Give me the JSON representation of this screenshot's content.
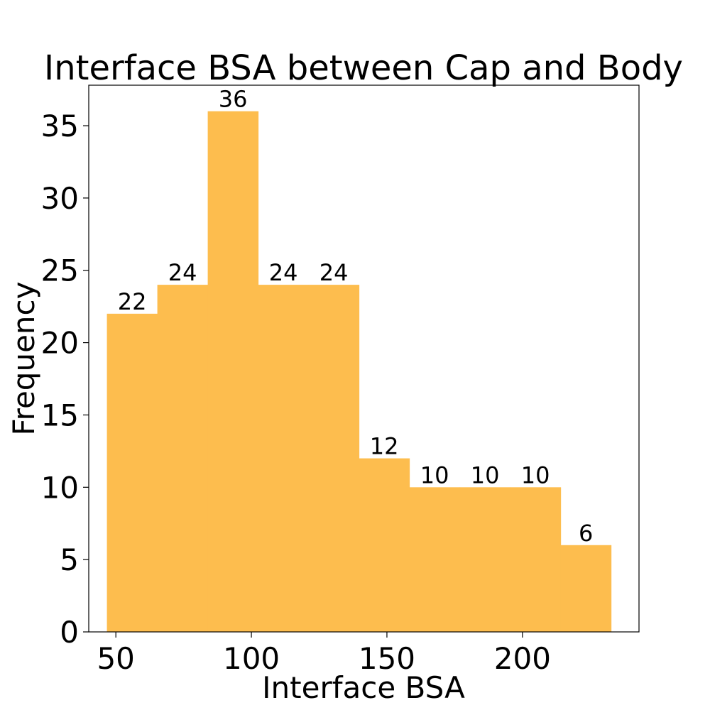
{
  "chart_data": {
    "type": "bar",
    "title": "Interface BSA between Cap and Body",
    "xlabel": "Interface BSA",
    "ylabel": "Frequency",
    "bar_color": "#fdbd4e",
    "grid": false,
    "legend": "none",
    "xlim": [
      40,
      243
    ],
    "ylim": [
      0,
      37.8
    ],
    "xticks": [
      50,
      100,
      150,
      200
    ],
    "yticks": [
      0,
      5,
      10,
      15,
      20,
      25,
      30,
      35
    ],
    "bin_edges": [
      46.7,
      65.3,
      83.9,
      102.5,
      121.1,
      139.7,
      158.3,
      176.9,
      195.5,
      214.1,
      232.7
    ],
    "values": [
      22,
      24,
      36,
      24,
      24,
      12,
      10,
      10,
      10,
      6
    ],
    "data_labels": [
      "22",
      "24",
      "36",
      "24",
      "24",
      "12",
      "10",
      "10",
      "10",
      "6"
    ]
  }
}
